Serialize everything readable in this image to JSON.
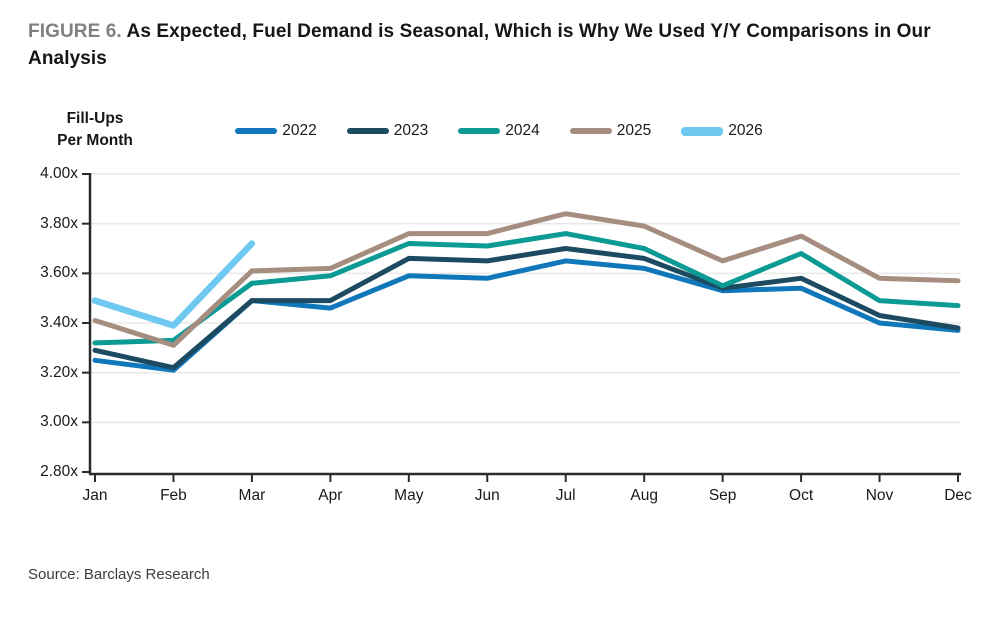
{
  "header": {
    "figure_label": "FIGURE 6.",
    "title": "As Expected, Fuel Demand is Seasonal, Which is Why We Used Y/Y Comparisons in Our Analysis"
  },
  "source": "Source: Barclays Research",
  "colors": {
    "axis": "#2b2b2b",
    "grid": "#e8e8e8",
    "figure_label_gray": "#808080",
    "text": "#1a1a1a"
  },
  "chart_data": {
    "type": "line",
    "y_axis_title": "Fill-Ups\nPer Month",
    "categories": [
      "Jan",
      "Feb",
      "Mar",
      "Apr",
      "May",
      "Jun",
      "Jul",
      "Aug",
      "Sep",
      "Oct",
      "Nov",
      "Dec"
    ],
    "series": [
      {
        "name": "2022",
        "color": "#1078ba",
        "line_width": 5,
        "values": [
          3.25,
          3.21,
          3.49,
          3.46,
          3.59,
          3.58,
          3.65,
          3.62,
          3.53,
          3.54,
          3.4,
          3.37
        ]
      },
      {
        "name": "2023",
        "color": "#1b4a61",
        "line_width": 5,
        "values": [
          3.29,
          3.22,
          3.49,
          3.49,
          3.66,
          3.65,
          3.7,
          3.66,
          3.54,
          3.58,
          3.43,
          3.38
        ]
      },
      {
        "name": "2024",
        "color": "#0b9a94",
        "line_width": 5,
        "values": [
          3.32,
          3.33,
          3.56,
          3.59,
          3.72,
          3.71,
          3.76,
          3.7,
          3.55,
          3.68,
          3.49,
          3.47
        ]
      },
      {
        "name": "2025",
        "color": "#a58d7f",
        "line_width": 5,
        "values": [
          3.41,
          3.31,
          3.61,
          3.62,
          3.76,
          3.76,
          3.84,
          3.79,
          3.65,
          3.75,
          3.58,
          3.57
        ]
      },
      {
        "name": "2026",
        "color": "#6ec8f0",
        "line_width": 6.5,
        "values": [
          3.49,
          3.39,
          3.72,
          null,
          null,
          null,
          null,
          null,
          null,
          null,
          null,
          null
        ]
      }
    ],
    "ylim": [
      2.8,
      4.0
    ],
    "yticks": [
      {
        "value": 4.0,
        "label": "4.00x"
      },
      {
        "value": 3.8,
        "label": "3.80x"
      },
      {
        "value": 3.6,
        "label": "3.60x"
      },
      {
        "value": 3.4,
        "label": "3.40x"
      },
      {
        "value": 3.2,
        "label": "3.20x"
      },
      {
        "value": 3.0,
        "label": "3.00x"
      },
      {
        "value": 2.8,
        "label": "2.80x"
      }
    ],
    "grid": true,
    "legend_position": "top"
  }
}
